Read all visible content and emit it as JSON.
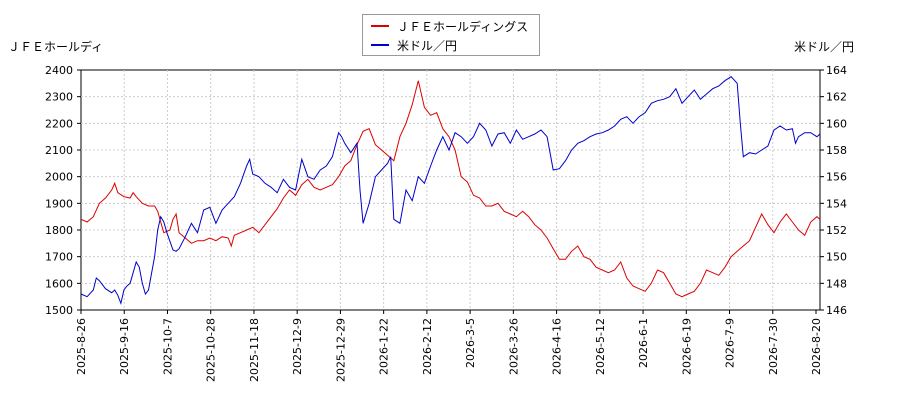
{
  "chart_data": {
    "type": "line",
    "left_axis_label": "ＪＦＥホールディ",
    "right_axis_label": "米ドル／円",
    "left_ylim": [
      1500,
      2400
    ],
    "left_yticks": [
      1500,
      1600,
      1700,
      1800,
      1900,
      2000,
      2100,
      2200,
      2300,
      2400
    ],
    "right_ylim": [
      146,
      164
    ],
    "right_yticks": [
      146,
      148,
      150,
      152,
      154,
      156,
      158,
      160,
      162,
      164
    ],
    "x_tick_labels": [
      "2025-8-26",
      "2025-9-16",
      "2025-10-7",
      "2025-10-28",
      "2025-11-18",
      "2025-12-9",
      "2025-12-29",
      "2026-1-22",
      "2026-2-12",
      "2026-3-5",
      "2026-3-26",
      "2026-4-16",
      "2026-5-12",
      "2026-6-1",
      "2026-6-19",
      "2026-7-9",
      "2026-7-30",
      "2026-8-20"
    ],
    "grid": true,
    "legend_position": "top-center",
    "series": [
      {
        "name": "ＪＦＥホールディングス",
        "color": "#dd0000",
        "axis": "left",
        "points": [
          [
            0,
            1840
          ],
          [
            2,
            1830
          ],
          [
            4,
            1850
          ],
          [
            6,
            1900
          ],
          [
            8,
            1920
          ],
          [
            10,
            1950
          ],
          [
            11,
            1975
          ],
          [
            12,
            1940
          ],
          [
            14,
            1925
          ],
          [
            16,
            1920
          ],
          [
            17,
            1940
          ],
          [
            18,
            1925
          ],
          [
            20,
            1900
          ],
          [
            22,
            1890
          ],
          [
            24,
            1890
          ],
          [
            25,
            1870
          ],
          [
            26,
            1830
          ],
          [
            27,
            1790
          ],
          [
            29,
            1800
          ],
          [
            30,
            1840
          ],
          [
            31,
            1860
          ],
          [
            32,
            1790
          ],
          [
            34,
            1770
          ],
          [
            36,
            1750
          ],
          [
            38,
            1760
          ],
          [
            40,
            1760
          ],
          [
            42,
            1770
          ],
          [
            44,
            1760
          ],
          [
            46,
            1775
          ],
          [
            48,
            1770
          ],
          [
            49,
            1740
          ],
          [
            50,
            1780
          ],
          [
            52,
            1790
          ],
          [
            54,
            1800
          ],
          [
            56,
            1810
          ],
          [
            58,
            1790
          ],
          [
            60,
            1820
          ],
          [
            62,
            1850
          ],
          [
            64,
            1880
          ],
          [
            66,
            1920
          ],
          [
            68,
            1950
          ],
          [
            70,
            1930
          ],
          [
            72,
            1970
          ],
          [
            74,
            1990
          ],
          [
            76,
            1960
          ],
          [
            78,
            1950
          ],
          [
            80,
            1960
          ],
          [
            82,
            1970
          ],
          [
            84,
            2000
          ],
          [
            86,
            2040
          ],
          [
            88,
            2060
          ],
          [
            90,
            2120
          ],
          [
            92,
            2170
          ],
          [
            94,
            2180
          ],
          [
            96,
            2120
          ],
          [
            98,
            2100
          ],
          [
            100,
            2080
          ],
          [
            102,
            2060
          ],
          [
            104,
            2150
          ],
          [
            106,
            2200
          ],
          [
            108,
            2270
          ],
          [
            110,
            2360
          ],
          [
            112,
            2260
          ],
          [
            114,
            2230
          ],
          [
            116,
            2240
          ],
          [
            118,
            2180
          ],
          [
            120,
            2150
          ],
          [
            122,
            2100
          ],
          [
            124,
            2000
          ],
          [
            126,
            1980
          ],
          [
            128,
            1930
          ],
          [
            130,
            1920
          ],
          [
            132,
            1890
          ],
          [
            134,
            1890
          ],
          [
            136,
            1900
          ],
          [
            138,
            1870
          ],
          [
            140,
            1860
          ],
          [
            142,
            1850
          ],
          [
            144,
            1870
          ],
          [
            146,
            1850
          ],
          [
            148,
            1820
          ],
          [
            150,
            1800
          ],
          [
            152,
            1770
          ],
          [
            154,
            1730
          ],
          [
            156,
            1690
          ],
          [
            158,
            1690
          ],
          [
            160,
            1720
          ],
          [
            162,
            1740
          ],
          [
            164,
            1700
          ],
          [
            166,
            1690
          ],
          [
            168,
            1660
          ],
          [
            170,
            1650
          ],
          [
            172,
            1640
          ],
          [
            174,
            1650
          ],
          [
            176,
            1680
          ],
          [
            178,
            1620
          ],
          [
            180,
            1590
          ],
          [
            182,
            1580
          ],
          [
            184,
            1570
          ],
          [
            186,
            1600
          ],
          [
            188,
            1650
          ],
          [
            190,
            1640
          ],
          [
            192,
            1600
          ],
          [
            194,
            1560
          ],
          [
            196,
            1550
          ],
          [
            198,
            1560
          ],
          [
            200,
            1570
          ],
          [
            202,
            1600
          ],
          [
            204,
            1650
          ],
          [
            206,
            1640
          ],
          [
            208,
            1630
          ],
          [
            210,
            1660
          ],
          [
            212,
            1700
          ],
          [
            214,
            1720
          ],
          [
            216,
            1740
          ],
          [
            218,
            1760
          ],
          [
            220,
            1810
          ],
          [
            222,
            1860
          ],
          [
            224,
            1820
          ],
          [
            226,
            1790
          ],
          [
            228,
            1830
          ],
          [
            230,
            1860
          ],
          [
            232,
            1830
          ],
          [
            234,
            1800
          ],
          [
            236,
            1780
          ],
          [
            238,
            1830
          ],
          [
            240,
            1850
          ],
          [
            241,
            1840
          ]
        ]
      },
      {
        "name": "米ドル／円",
        "color": "#0000cc",
        "axis": "right",
        "points": [
          [
            0,
            147.2
          ],
          [
            2,
            147.0
          ],
          [
            4,
            147.5
          ],
          [
            5,
            148.4
          ],
          [
            6,
            148.2
          ],
          [
            8,
            147.6
          ],
          [
            10,
            147.3
          ],
          [
            11,
            147.5
          ],
          [
            12,
            147.1
          ],
          [
            13,
            146.5
          ],
          [
            14,
            147.5
          ],
          [
            15,
            147.8
          ],
          [
            16,
            148.0
          ],
          [
            18,
            149.6
          ],
          [
            19,
            149.2
          ],
          [
            20,
            148.0
          ],
          [
            21,
            147.2
          ],
          [
            22,
            147.5
          ],
          [
            24,
            150.0
          ],
          [
            25,
            152.0
          ],
          [
            26,
            153.0
          ],
          [
            27,
            152.6
          ],
          [
            28,
            151.8
          ],
          [
            30,
            150.5
          ],
          [
            31,
            150.4
          ],
          [
            32,
            150.6
          ],
          [
            34,
            151.5
          ],
          [
            36,
            152.5
          ],
          [
            38,
            151.8
          ],
          [
            40,
            153.5
          ],
          [
            42,
            153.7
          ],
          [
            44,
            152.5
          ],
          [
            46,
            153.5
          ],
          [
            48,
            154.0
          ],
          [
            50,
            154.5
          ],
          [
            52,
            155.5
          ],
          [
            54,
            156.8
          ],
          [
            55,
            157.3
          ],
          [
            56,
            156.2
          ],
          [
            58,
            156.0
          ],
          [
            60,
            155.5
          ],
          [
            62,
            155.2
          ],
          [
            64,
            154.8
          ],
          [
            66,
            155.8
          ],
          [
            68,
            155.2
          ],
          [
            70,
            155.0
          ],
          [
            72,
            157.3
          ],
          [
            74,
            156.0
          ],
          [
            76,
            155.8
          ],
          [
            78,
            156.5
          ],
          [
            80,
            156.8
          ],
          [
            82,
            157.5
          ],
          [
            84,
            159.3
          ],
          [
            85,
            159.0
          ],
          [
            86,
            158.5
          ],
          [
            88,
            157.8
          ],
          [
            90,
            158.5
          ],
          [
            91,
            155.0
          ],
          [
            92,
            152.5
          ],
          [
            94,
            154.0
          ],
          [
            96,
            156.0
          ],
          [
            98,
            156.5
          ],
          [
            100,
            157.0
          ],
          [
            101,
            157.5
          ],
          [
            102,
            152.8
          ],
          [
            104,
            152.5
          ],
          [
            106,
            155.0
          ],
          [
            108,
            154.2
          ],
          [
            110,
            156.0
          ],
          [
            112,
            155.5
          ],
          [
            114,
            156.8
          ],
          [
            116,
            158.0
          ],
          [
            118,
            159.0
          ],
          [
            120,
            158.0
          ],
          [
            122,
            159.3
          ],
          [
            124,
            159.0
          ],
          [
            126,
            158.5
          ],
          [
            128,
            159.0
          ],
          [
            130,
            160.0
          ],
          [
            132,
            159.5
          ],
          [
            134,
            158.3
          ],
          [
            136,
            159.2
          ],
          [
            138,
            159.3
          ],
          [
            140,
            158.5
          ],
          [
            142,
            159.5
          ],
          [
            144,
            158.8
          ],
          [
            146,
            159.0
          ],
          [
            148,
            159.2
          ],
          [
            150,
            159.5
          ],
          [
            152,
            159.0
          ],
          [
            154,
            156.5
          ],
          [
            156,
            156.6
          ],
          [
            158,
            157.2
          ],
          [
            160,
            158.0
          ],
          [
            162,
            158.5
          ],
          [
            164,
            158.7
          ],
          [
            166,
            159.0
          ],
          [
            168,
            159.2
          ],
          [
            170,
            159.3
          ],
          [
            172,
            159.5
          ],
          [
            174,
            159.8
          ],
          [
            176,
            160.3
          ],
          [
            178,
            160.5
          ],
          [
            180,
            160.0
          ],
          [
            182,
            160.5
          ],
          [
            184,
            160.8
          ],
          [
            186,
            161.5
          ],
          [
            188,
            161.7
          ],
          [
            190,
            161.8
          ],
          [
            192,
            162.0
          ],
          [
            194,
            162.6
          ],
          [
            196,
            161.5
          ],
          [
            198,
            162.0
          ],
          [
            200,
            162.5
          ],
          [
            202,
            161.8
          ],
          [
            204,
            162.2
          ],
          [
            206,
            162.6
          ],
          [
            208,
            162.8
          ],
          [
            210,
            163.2
          ],
          [
            212,
            163.5
          ],
          [
            214,
            163.0
          ],
          [
            215,
            160.0
          ],
          [
            216,
            157.5
          ],
          [
            218,
            157.8
          ],
          [
            220,
            157.7
          ],
          [
            222,
            158.0
          ],
          [
            224,
            158.3
          ],
          [
            226,
            159.5
          ],
          [
            228,
            159.8
          ],
          [
            230,
            159.5
          ],
          [
            232,
            159.6
          ],
          [
            233,
            158.5
          ],
          [
            234,
            159.0
          ],
          [
            236,
            159.3
          ],
          [
            238,
            159.3
          ],
          [
            240,
            159.0
          ],
          [
            241,
            159.2
          ]
        ]
      }
    ]
  }
}
